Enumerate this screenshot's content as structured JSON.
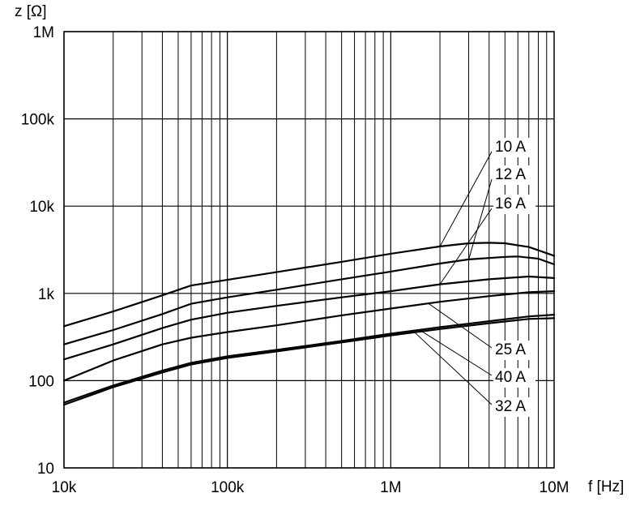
{
  "chart_data": {
    "type": "line",
    "xlabel": "f [Hz]",
    "ylabel": "z [Ω]",
    "x_scale": "log",
    "y_scale": "log",
    "xlim": [
      10000,
      10000000
    ],
    "ylim": [
      10,
      1000000
    ],
    "grid": true,
    "x_ticks": [
      {
        "value": 10000,
        "label": "10k"
      },
      {
        "value": 100000,
        "label": "100k"
      },
      {
        "value": 1000000,
        "label": "1M"
      },
      {
        "value": 10000000,
        "label": "10M"
      }
    ],
    "y_ticks": [
      {
        "value": 10,
        "label": "10"
      },
      {
        "value": 100,
        "label": "100"
      },
      {
        "value": 1000,
        "label": "1k"
      },
      {
        "value": 10000,
        "label": "10k"
      },
      {
        "value": 100000,
        "label": "100k"
      },
      {
        "value": 1000000,
        "label": "1M"
      }
    ],
    "series": [
      {
        "name": "10 A",
        "x": [
          10000,
          20000,
          40000,
          60000,
          100000,
          200000,
          500000,
          1000000,
          2000000,
          3000000,
          4000000,
          5000000,
          7000000,
          10000000
        ],
        "y": [
          420,
          620,
          950,
          1230,
          1430,
          1750,
          2300,
          2850,
          3450,
          3750,
          3800,
          3750,
          3400,
          2700
        ]
      },
      {
        "name": "12 A",
        "x": [
          10000,
          20000,
          40000,
          60000,
          100000,
          200000,
          500000,
          1000000,
          2000000,
          3000000,
          5000000,
          6000000,
          8000000,
          10000000
        ],
        "y": [
          260,
          380,
          580,
          760,
          900,
          1100,
          1450,
          1780,
          2200,
          2450,
          2620,
          2650,
          2500,
          2150
        ]
      },
      {
        "name": "16 A",
        "x": [
          10000,
          20000,
          40000,
          60000,
          100000,
          200000,
          500000,
          1000000,
          2000000,
          4000000,
          7000000,
          10000000
        ],
        "y": [
          175,
          260,
          400,
          500,
          600,
          720,
          900,
          1060,
          1270,
          1450,
          1560,
          1500
        ]
      },
      {
        "name": "25 A",
        "x": [
          10000,
          20000,
          40000,
          60000,
          100000,
          200000,
          500000,
          1000000,
          2000000,
          4000000,
          7000000,
          10000000
        ],
        "y": [
          100,
          170,
          260,
          310,
          360,
          430,
          560,
          670,
          800,
          930,
          1030,
          1060
        ]
      },
      {
        "name": "40 A",
        "x": [
          10000,
          20000,
          40000,
          60000,
          100000,
          200000,
          500000,
          1000000,
          2000000,
          4000000,
          7000000,
          10000000
        ],
        "y": [
          56,
          88,
          130,
          160,
          190,
          225,
          285,
          345,
          410,
          480,
          545,
          570
        ]
      },
      {
        "name": "32 A",
        "x": [
          10000,
          20000,
          40000,
          60000,
          100000,
          200000,
          500000,
          1000000,
          2000000,
          4000000,
          7000000,
          10000000
        ],
        "y": [
          53,
          84,
          124,
          153,
          182,
          216,
          274,
          330,
          390,
          455,
          510,
          520
        ]
      }
    ],
    "annotations": [
      {
        "label": "10 A",
        "series": "10 A",
        "point_x": 2000000
      },
      {
        "label": "12 A",
        "series": "12 A",
        "point_x": 3000000
      },
      {
        "label": "16 A",
        "series": "16 A",
        "point_x": 2000000
      },
      {
        "label": "25 A",
        "series": "25 A",
        "point_x": 1700000
      },
      {
        "label": "40 A",
        "series": "40 A",
        "point_x": 1500000
      },
      {
        "label": "32 A",
        "series": "32 A",
        "point_x": 1400000
      }
    ]
  }
}
